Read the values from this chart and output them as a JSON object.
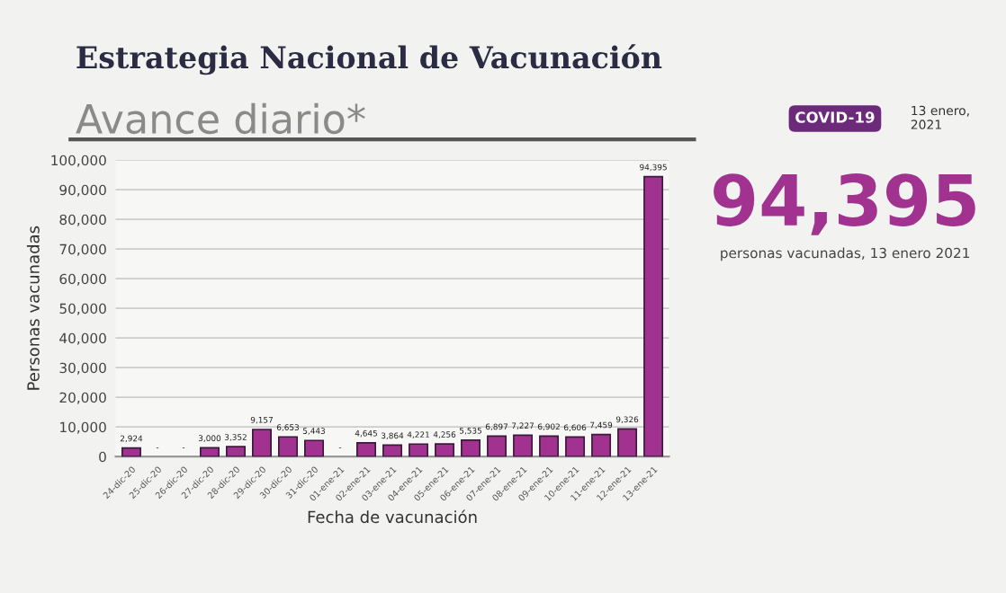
{
  "chart_data": {
    "type": "bar",
    "title": "Estrategia Nacional de Vacunación",
    "subtitle": "Avance diario*",
    "xlabel": "Fecha de vacunación",
    "ylabel": "Personas vacunadas",
    "categories": [
      "24-dic-20",
      "25-dic-20",
      "26-dic-20",
      "27-dic-20",
      "28-dic-20",
      "29-dic-20",
      "30-dic-20",
      "31-dic-20",
      "01-ene-21",
      "02-ene-21",
      "03-ene-21",
      "04-ene-21",
      "05-ene-21",
      "06-ene-21",
      "07-ene-21",
      "08-ene-21",
      "09-ene-21",
      "10-ene-21",
      "11-ene-21",
      "12-ene-21",
      "13-ene-21"
    ],
    "values": [
      2924,
      0,
      0,
      3000,
      3352,
      9157,
      6653,
      5443,
      0,
      4645,
      3864,
      4221,
      4256,
      5535,
      6897,
      7227,
      6902,
      6606,
      7459,
      9326,
      94395
    ],
    "value_labels": [
      "2,924",
      "-",
      "-",
      "3,000",
      "3,352",
      "9,157",
      "6,653",
      "5,443",
      "-",
      "4,645",
      "3,864",
      "4,221",
      "4,256",
      "5,535",
      "6,897",
      "7,227",
      "6,902",
      "6,606",
      "7,459",
      "9,326",
      "94,395"
    ],
    "color": "#a1328f",
    "ylim": [
      0,
      100000
    ],
    "yticks": [
      {
        "value": 0,
        "label": "0"
      },
      {
        "value": 10000,
        "label": "10,000"
      },
      {
        "value": 20000,
        "label": "20,000"
      },
      {
        "value": 30000,
        "label": "30,000"
      },
      {
        "value": 40000,
        "label": "40,000"
      },
      {
        "value": 50000,
        "label": "50,000"
      },
      {
        "value": 60000,
        "label": "60,000"
      },
      {
        "value": 70000,
        "label": "70,000"
      },
      {
        "value": 80000,
        "label": "80,000"
      },
      {
        "value": 90000,
        "label": "90,000"
      },
      {
        "value": 100000,
        "label": "100,000"
      }
    ],
    "grid": "y",
    "annotations": [
      "94,395",
      "personas vacunadas, 13 enero 2021",
      "COVID-19",
      "13 enero, 2021"
    ]
  }
}
